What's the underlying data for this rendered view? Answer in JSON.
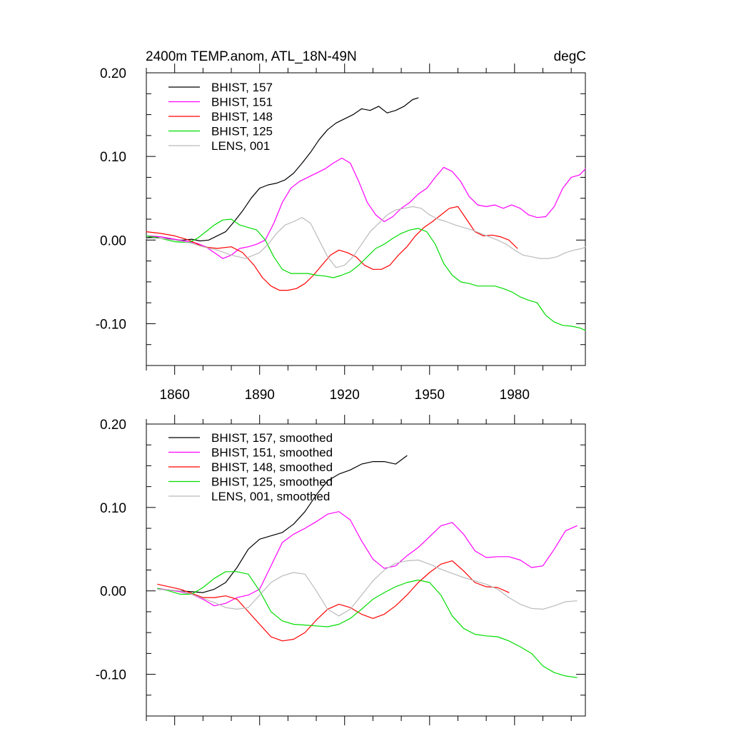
{
  "figure": {
    "title_left": "2400m TEMP.anom, ATL_18N-49N",
    "title_right": "degC"
  },
  "colors": {
    "BHIST_157": "#000000",
    "BHIST_151": "#ff00ff",
    "BHIST_148": "#ff0000",
    "BHIST_125": "#00dd00",
    "LENS_001": "#bbbbbb"
  },
  "chart_data": [
    {
      "type": "line",
      "xlim": [
        1850,
        2005
      ],
      "ylim": [
        -0.15,
        0.2
      ],
      "x_ticks": [
        1860,
        1890,
        1920,
        1950,
        1980
      ],
      "x_tick_labels": [
        "1860",
        "1890",
        "1920",
        "1950",
        "1980"
      ],
      "y_ticks": [
        -0.1,
        0.0,
        0.1,
        0.2
      ],
      "y_tick_labels": [
        "-0.10",
        "0.00",
        "0.10",
        "0.20"
      ],
      "legend_position": "top-left",
      "grid": false,
      "series": [
        {
          "name": "BHIST, 157",
          "color_key": "BHIST_157",
          "x": [
            1850,
            1855,
            1860,
            1863,
            1866,
            1869,
            1872,
            1875,
            1878,
            1881,
            1884,
            1887,
            1890,
            1893,
            1896,
            1899,
            1902,
            1905,
            1908,
            1911,
            1914,
            1917,
            1920,
            1923,
            1926,
            1929,
            1932,
            1935,
            1938,
            1941,
            1944,
            1946
          ],
          "y": [
            0.003,
            0.004,
            0.0,
            0.0,
            0.001,
            -0.001,
            0.0,
            0.005,
            0.01,
            0.022,
            0.035,
            0.05,
            0.062,
            0.066,
            0.068,
            0.072,
            0.08,
            0.092,
            0.105,
            0.12,
            0.132,
            0.14,
            0.145,
            0.15,
            0.157,
            0.155,
            0.16,
            0.152,
            0.155,
            0.16,
            0.168,
            0.17
          ]
        },
        {
          "name": "BHIST, 151",
          "color_key": "BHIST_151",
          "x": [
            1850,
            1855,
            1860,
            1865,
            1868,
            1871,
            1874,
            1877,
            1880,
            1883,
            1886,
            1889,
            1892,
            1895,
            1898,
            1901,
            1904,
            1907,
            1910,
            1913,
            1916,
            1919,
            1922,
            1925,
            1928,
            1931,
            1934,
            1937,
            1940,
            1943,
            1946,
            1949,
            1952,
            1955,
            1958,
            1961,
            1964,
            1967,
            1970,
            1973,
            1976,
            1979,
            1982,
            1985,
            1988,
            1991,
            1994,
            1997,
            2000,
            2003,
            2005
          ],
          "y": [
            0.005,
            0.004,
            0.001,
            -0.002,
            -0.004,
            -0.008,
            -0.015,
            -0.022,
            -0.018,
            -0.01,
            -0.008,
            -0.005,
            0.0,
            0.02,
            0.045,
            0.062,
            0.07,
            0.075,
            0.08,
            0.085,
            0.092,
            0.098,
            0.092,
            0.07,
            0.045,
            0.03,
            0.022,
            0.028,
            0.038,
            0.045,
            0.055,
            0.062,
            0.075,
            0.087,
            0.082,
            0.07,
            0.052,
            0.042,
            0.04,
            0.042,
            0.038,
            0.042,
            0.038,
            0.03,
            0.027,
            0.028,
            0.04,
            0.062,
            0.075,
            0.078,
            0.085
          ]
        },
        {
          "name": "BHIST, 148",
          "color_key": "BHIST_148",
          "x": [
            1850,
            1855,
            1860,
            1865,
            1870,
            1875,
            1880,
            1884,
            1888,
            1891,
            1894,
            1897,
            1900,
            1903,
            1906,
            1909,
            1912,
            1915,
            1918,
            1921,
            1924,
            1927,
            1930,
            1933,
            1936,
            1939,
            1942,
            1945,
            1948,
            1951,
            1954,
            1957,
            1960,
            1963,
            1966,
            1969,
            1972,
            1975,
            1978,
            1981
          ],
          "y": [
            0.01,
            0.008,
            0.005,
            0.0,
            -0.008,
            -0.01,
            -0.008,
            -0.015,
            -0.03,
            -0.045,
            -0.055,
            -0.06,
            -0.06,
            -0.058,
            -0.052,
            -0.042,
            -0.03,
            -0.018,
            -0.012,
            -0.015,
            -0.02,
            -0.03,
            -0.035,
            -0.035,
            -0.03,
            -0.018,
            -0.008,
            0.005,
            0.015,
            0.022,
            0.03,
            0.038,
            0.04,
            0.025,
            0.01,
            0.005,
            0.006,
            0.004,
            0.0,
            -0.01
          ]
        },
        {
          "name": "BHIST, 125",
          "color_key": "BHIST_125",
          "x": [
            1850,
            1855,
            1860,
            1865,
            1868,
            1871,
            1874,
            1877,
            1880,
            1883,
            1886,
            1889,
            1892,
            1895,
            1898,
            1901,
            1904,
            1907,
            1910,
            1913,
            1916,
            1919,
            1922,
            1925,
            1928,
            1931,
            1934,
            1937,
            1940,
            1943,
            1946,
            1949,
            1952,
            1955,
            1958,
            1961,
            1964,
            1967,
            1970,
            1973,
            1976,
            1979,
            1982,
            1985,
            1988,
            1991,
            1994,
            1997,
            2000,
            2003,
            2005
          ],
          "y": [
            0.005,
            0.002,
            -0.002,
            -0.003,
            0.002,
            0.01,
            0.018,
            0.024,
            0.025,
            0.018,
            0.015,
            0.012,
            0.0,
            -0.02,
            -0.035,
            -0.04,
            -0.04,
            -0.04,
            -0.042,
            -0.043,
            -0.045,
            -0.042,
            -0.038,
            -0.03,
            -0.02,
            -0.01,
            -0.005,
            0.002,
            0.008,
            0.012,
            0.014,
            0.01,
            -0.005,
            -0.028,
            -0.042,
            -0.05,
            -0.052,
            -0.055,
            -0.055,
            -0.055,
            -0.058,
            -0.062,
            -0.068,
            -0.072,
            -0.075,
            -0.09,
            -0.098,
            -0.102,
            -0.103,
            -0.105,
            -0.108
          ]
        },
        {
          "name": "LENS, 001",
          "color_key": "LENS_001",
          "x": [
            1850,
            1855,
            1860,
            1865,
            1870,
            1875,
            1880,
            1885,
            1890,
            1893,
            1896,
            1899,
            1902,
            1905,
            1908,
            1911,
            1914,
            1917,
            1920,
            1923,
            1926,
            1929,
            1932,
            1935,
            1938,
            1941,
            1944,
            1947,
            1950,
            1953,
            1956,
            1959,
            1962,
            1965,
            1968,
            1971,
            1974,
            1977,
            1980,
            1983,
            1986,
            1989,
            1992,
            1995,
            1998,
            2001,
            2004,
            2005
          ],
          "y": [
            0.002,
            0.002,
            0.0,
            -0.003,
            -0.008,
            -0.012,
            -0.018,
            -0.022,
            -0.015,
            -0.005,
            0.008,
            0.018,
            0.022,
            0.027,
            0.02,
            0.0,
            -0.02,
            -0.033,
            -0.03,
            -0.02,
            -0.005,
            0.01,
            0.02,
            0.03,
            0.036,
            0.038,
            0.04,
            0.038,
            0.03,
            0.025,
            0.022,
            0.018,
            0.015,
            0.012,
            0.008,
            0.004,
            0.0,
            -0.005,
            -0.012,
            -0.018,
            -0.02,
            -0.022,
            -0.022,
            -0.02,
            -0.015,
            -0.012,
            -0.01,
            -0.008
          ]
        }
      ]
    },
    {
      "type": "line",
      "xlim": [
        1850,
        2005
      ],
      "ylim": [
        -0.15,
        0.2
      ],
      "x_ticks": [
        1860,
        1890,
        1920,
        1950,
        1980
      ],
      "x_tick_labels": [],
      "y_ticks": [
        -0.1,
        0.0,
        0.1,
        0.2
      ],
      "y_tick_labels": [
        "-0.10",
        "0.00",
        "0.10",
        "0.20"
      ],
      "legend_position": "top-left",
      "grid": false,
      "series": [
        {
          "name": "BHIST, 157, smoothed",
          "color_key": "BHIST_157",
          "x": [
            1854,
            1858,
            1862,
            1866,
            1870,
            1874,
            1878,
            1882,
            1886,
            1890,
            1894,
            1898,
            1902,
            1906,
            1910,
            1914,
            1918,
            1922,
            1926,
            1930,
            1934,
            1938,
            1942
          ],
          "y": [
            0.002,
            0.001,
            0.0,
            -0.001,
            -0.002,
            0.002,
            0.01,
            0.028,
            0.05,
            0.062,
            0.066,
            0.07,
            0.08,
            0.095,
            0.115,
            0.132,
            0.14,
            0.145,
            0.152,
            0.155,
            0.155,
            0.152,
            0.162
          ]
        },
        {
          "name": "BHIST, 151, smoothed",
          "color_key": "BHIST_151",
          "x": [
            1854,
            1858,
            1862,
            1866,
            1870,
            1874,
            1878,
            1882,
            1886,
            1890,
            1894,
            1898,
            1902,
            1906,
            1910,
            1914,
            1918,
            1922,
            1926,
            1930,
            1934,
            1938,
            1942,
            1946,
            1950,
            1954,
            1958,
            1962,
            1966,
            1970,
            1974,
            1978,
            1982,
            1986,
            1990,
            1994,
            1998,
            2002
          ],
          "y": [
            0.003,
            0.001,
            -0.001,
            -0.004,
            -0.01,
            -0.018,
            -0.015,
            -0.008,
            -0.005,
            0.002,
            0.03,
            0.058,
            0.068,
            0.075,
            0.083,
            0.092,
            0.095,
            0.085,
            0.06,
            0.038,
            0.027,
            0.03,
            0.042,
            0.052,
            0.065,
            0.078,
            0.082,
            0.068,
            0.048,
            0.04,
            0.041,
            0.041,
            0.037,
            0.028,
            0.03,
            0.05,
            0.072,
            0.078
          ]
        },
        {
          "name": "BHIST, 148, smoothed",
          "color_key": "BHIST_148",
          "x": [
            1854,
            1858,
            1862,
            1866,
            1870,
            1874,
            1878,
            1882,
            1886,
            1890,
            1894,
            1898,
            1902,
            1906,
            1910,
            1914,
            1918,
            1922,
            1926,
            1930,
            1934,
            1938,
            1942,
            1946,
            1950,
            1954,
            1958,
            1962,
            1966,
            1970,
            1974,
            1978
          ],
          "y": [
            0.008,
            0.005,
            0.002,
            -0.003,
            -0.008,
            -0.008,
            -0.006,
            -0.01,
            -0.025,
            -0.04,
            -0.055,
            -0.06,
            -0.058,
            -0.05,
            -0.035,
            -0.022,
            -0.016,
            -0.02,
            -0.028,
            -0.033,
            -0.028,
            -0.018,
            -0.005,
            0.01,
            0.022,
            0.032,
            0.036,
            0.024,
            0.01,
            0.005,
            0.004,
            -0.002
          ]
        },
        {
          "name": "BHIST, 125, smoothed",
          "color_key": "BHIST_125",
          "x": [
            1854,
            1858,
            1862,
            1866,
            1870,
            1874,
            1878,
            1882,
            1886,
            1890,
            1894,
            1898,
            1902,
            1906,
            1910,
            1914,
            1918,
            1922,
            1926,
            1930,
            1934,
            1938,
            1942,
            1946,
            1950,
            1954,
            1958,
            1962,
            1966,
            1970,
            1974,
            1978,
            1982,
            1986,
            1990,
            1994,
            1998,
            2002
          ],
          "y": [
            0.003,
            0.0,
            -0.004,
            -0.004,
            0.004,
            0.015,
            0.023,
            0.023,
            0.02,
            0.0,
            -0.025,
            -0.036,
            -0.04,
            -0.041,
            -0.042,
            -0.043,
            -0.04,
            -0.033,
            -0.022,
            -0.01,
            -0.002,
            0.005,
            0.01,
            0.013,
            0.01,
            -0.005,
            -0.03,
            -0.045,
            -0.052,
            -0.054,
            -0.055,
            -0.06,
            -0.067,
            -0.075,
            -0.09,
            -0.098,
            -0.102,
            -0.104
          ]
        },
        {
          "name": "LENS, 001, smoothed",
          "color_key": "LENS_001",
          "x": [
            1854,
            1858,
            1862,
            1866,
            1870,
            1874,
            1878,
            1882,
            1886,
            1890,
            1894,
            1898,
            1902,
            1906,
            1910,
            1914,
            1918,
            1922,
            1926,
            1930,
            1934,
            1938,
            1942,
            1946,
            1950,
            1954,
            1958,
            1962,
            1966,
            1970,
            1974,
            1978,
            1982,
            1986,
            1990,
            1994,
            1998,
            2002
          ],
          "y": [
            0.002,
            0.001,
            0.0,
            -0.004,
            -0.009,
            -0.014,
            -0.02,
            -0.022,
            -0.02,
            -0.005,
            0.01,
            0.018,
            0.022,
            0.02,
            0.0,
            -0.022,
            -0.03,
            -0.022,
            -0.005,
            0.012,
            0.025,
            0.033,
            0.036,
            0.037,
            0.032,
            0.026,
            0.021,
            0.016,
            0.012,
            0.008,
            0.002,
            -0.008,
            -0.016,
            -0.021,
            -0.022,
            -0.018,
            -0.013,
            -0.012
          ]
        }
      ]
    }
  ]
}
